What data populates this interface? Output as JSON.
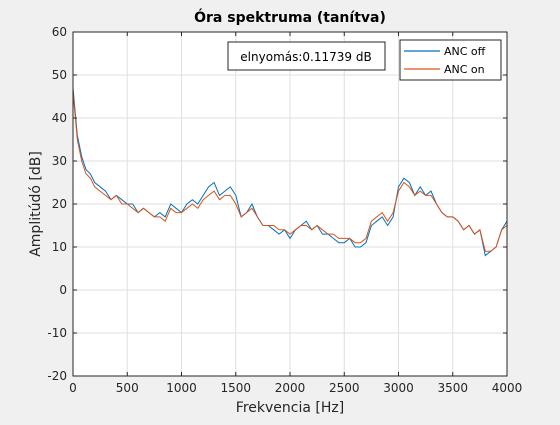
{
  "chart_data": {
    "type": "line",
    "title": "Óra spektruma (tanítva)",
    "xlabel": "Frekvencia [Hz]",
    "ylabel": "Amplitúdó [dB]",
    "xlim": [
      0,
      4000
    ],
    "ylim": [
      -20,
      60
    ],
    "xticks": [
      0,
      500,
      1000,
      1500,
      2000,
      2500,
      3000,
      3500,
      4000
    ],
    "yticks": [
      -20,
      -10,
      0,
      10,
      20,
      30,
      40,
      50,
      60
    ],
    "grid": true,
    "legend_position": "top-right",
    "annotation": "elnyomás:0.11739 dB",
    "series": [
      {
        "name": "ANC off",
        "color": "#0072bd",
        "x": [
          0,
          40,
          80,
          120,
          160,
          200,
          250,
          300,
          350,
          400,
          450,
          500,
          550,
          600,
          650,
          700,
          750,
          800,
          850,
          900,
          950,
          1000,
          1050,
          1100,
          1150,
          1200,
          1250,
          1300,
          1350,
          1400,
          1450,
          1500,
          1550,
          1600,
          1650,
          1700,
          1750,
          1800,
          1850,
          1900,
          1950,
          2000,
          2050,
          2100,
          2150,
          2200,
          2250,
          2300,
          2350,
          2400,
          2450,
          2500,
          2550,
          2600,
          2650,
          2700,
          2750,
          2800,
          2850,
          2900,
          2950,
          3000,
          3050,
          3100,
          3150,
          3200,
          3250,
          3300,
          3350,
          3400,
          3450,
          3500,
          3550,
          3600,
          3650,
          3700,
          3750,
          3800,
          3850,
          3900,
          3950,
          4000
        ],
        "values": [
          47,
          36,
          31,
          28,
          27,
          25,
          24,
          23,
          21,
          22,
          21,
          20,
          20,
          18,
          19,
          18,
          17,
          18,
          17,
          20,
          19,
          18,
          20,
          21,
          20,
          22,
          24,
          25,
          22,
          23,
          24,
          22,
          17,
          18,
          20,
          17,
          15,
          15,
          14,
          13,
          14,
          12,
          14,
          15,
          16,
          14,
          15,
          13,
          13,
          12,
          11,
          11,
          12,
          10,
          10,
          11,
          15,
          16,
          17,
          15,
          17,
          24,
          26,
          25,
          22,
          24,
          22,
          23,
          20,
          18,
          17,
          17,
          16,
          14,
          15,
          13,
          14,
          8,
          9,
          10,
          14,
          16
        ]
      },
      {
        "name": "ANC on",
        "color": "#d95319",
        "x": [
          0,
          40,
          80,
          120,
          160,
          200,
          250,
          300,
          350,
          400,
          450,
          500,
          550,
          600,
          650,
          700,
          750,
          800,
          850,
          900,
          950,
          1000,
          1050,
          1100,
          1150,
          1200,
          1250,
          1300,
          1350,
          1400,
          1450,
          1500,
          1550,
          1600,
          1650,
          1700,
          1750,
          1800,
          1850,
          1900,
          1950,
          2000,
          2050,
          2100,
          2150,
          2200,
          2250,
          2300,
          2350,
          2400,
          2450,
          2500,
          2550,
          2600,
          2650,
          2700,
          2750,
          2800,
          2850,
          2900,
          2950,
          3000,
          3050,
          3100,
          3150,
          3200,
          3250,
          3300,
          3350,
          3400,
          3450,
          3500,
          3550,
          3600,
          3650,
          3700,
          3750,
          3800,
          3850,
          3900,
          3950,
          4000
        ],
        "values": [
          46,
          35,
          30,
          27,
          26,
          24,
          23,
          22,
          21,
          22,
          20,
          20,
          19,
          18,
          19,
          18,
          17,
          17,
          16,
          19,
          18,
          18,
          19,
          20,
          19,
          21,
          22,
          23,
          21,
          22,
          22,
          20,
          17,
          18,
          19,
          17,
          15,
          15,
          15,
          14,
          14,
          13,
          14,
          15,
          15,
          14,
          15,
          14,
          13,
          13,
          12,
          12,
          12,
          11,
          11,
          12,
          16,
          17,
          18,
          16,
          18,
          23,
          25,
          24,
          22,
          23,
          22,
          22,
          20,
          18,
          17,
          17,
          16,
          14,
          15,
          13,
          14,
          9,
          9,
          10,
          14,
          15
        ]
      }
    ]
  }
}
